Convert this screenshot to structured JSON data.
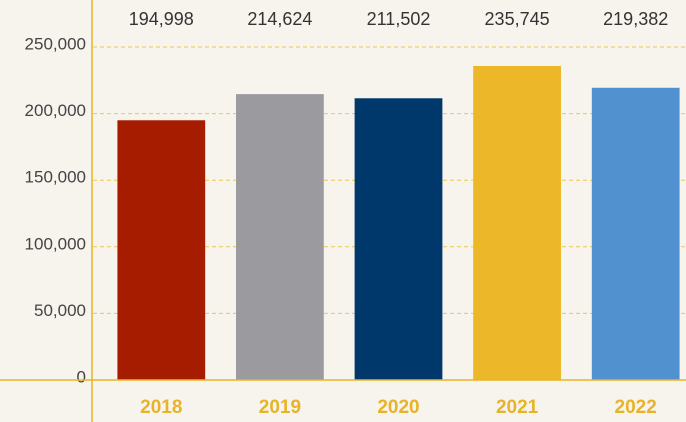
{
  "chart_data": {
    "type": "bar",
    "categories": [
      "2018",
      "2019",
      "2020",
      "2021",
      "2022"
    ],
    "values": [
      194998,
      214624,
      211502,
      235745,
      219382
    ],
    "value_labels": [
      "194,998",
      "214,624",
      "211,502",
      "235,745",
      "219,382"
    ],
    "colors": [
      "#a51c00",
      "#9b9a9f",
      "#00386b",
      "#ecb82a",
      "#5191cf"
    ],
    "ylim": [
      0,
      250000
    ],
    "yticks": [
      0,
      {
        "value": 50000,
        "label": "50,000"
      },
      {
        "value": 100000,
        "label": "100,000"
      },
      {
        "value": 150000,
        "label": "150,000"
      },
      {
        "value": 200000,
        "label": "200,000"
      },
      {
        "value": 250000,
        "label": "250,000"
      }
    ],
    "grid": true
  }
}
